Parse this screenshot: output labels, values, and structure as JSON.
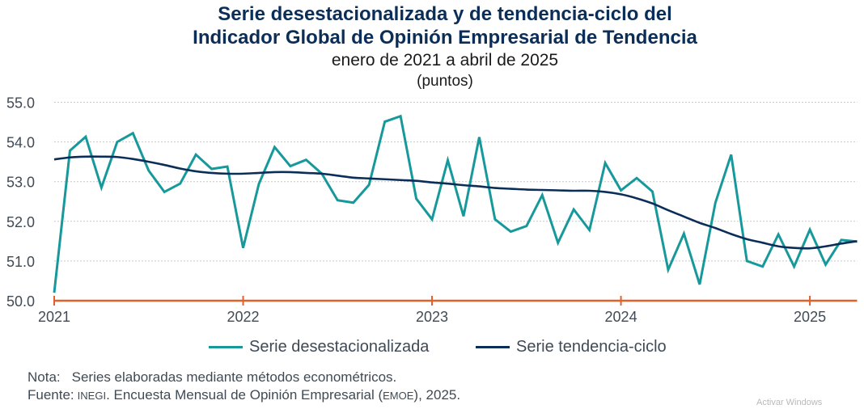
{
  "chart_data": {
    "type": "line",
    "title": "Serie desestacionalizada y de tendencia-ciclo del Indicador Global de Opinión Empresarial de Tendencia",
    "title_lines": [
      "Serie desestacionalizada y de tendencia-ciclo del",
      "Indicador Global de Opinión Empresarial de Tendencia"
    ],
    "subtitle": "enero de 2021 a abril de 2025",
    "units": "(puntos)",
    "xlabel": "",
    "ylabel": "",
    "ylim": [
      50.0,
      55.0
    ],
    "yticks": [
      "55.0",
      "54.0",
      "53.0",
      "52.0",
      "51.0",
      "50.0"
    ],
    "ytick_values": [
      55,
      54,
      53,
      52,
      51,
      50
    ],
    "xticks": [
      "2021",
      "2022",
      "2023",
      "2024",
      "2025"
    ],
    "xtick_month_index": [
      0,
      12,
      24,
      36,
      48
    ],
    "grid": true,
    "legend_position": "bottom",
    "x": [
      "2021-01",
      "2021-02",
      "2021-03",
      "2021-04",
      "2021-05",
      "2021-06",
      "2021-07",
      "2021-08",
      "2021-09",
      "2021-10",
      "2021-11",
      "2021-12",
      "2022-01",
      "2022-02",
      "2022-03",
      "2022-04",
      "2022-05",
      "2022-06",
      "2022-07",
      "2022-08",
      "2022-09",
      "2022-10",
      "2022-11",
      "2022-12",
      "2023-01",
      "2023-02",
      "2023-03",
      "2023-04",
      "2023-05",
      "2023-06",
      "2023-07",
      "2023-08",
      "2023-09",
      "2023-10",
      "2023-11",
      "2023-12",
      "2024-01",
      "2024-02",
      "2024-03",
      "2024-04",
      "2024-05",
      "2024-06",
      "2024-07",
      "2024-08",
      "2024-09",
      "2024-10",
      "2024-11",
      "2024-12",
      "2025-01",
      "2025-02",
      "2025-03",
      "2025-04"
    ],
    "series": [
      {
        "name": "Serie desestacionalizada",
        "color": "#17999b",
        "values": [
          50.2,
          53.78,
          54.13,
          52.85,
          54.0,
          54.22,
          53.28,
          52.74,
          52.95,
          53.68,
          53.32,
          53.38,
          51.33,
          52.94,
          53.87,
          53.39,
          53.55,
          53.2,
          52.53,
          52.47,
          52.92,
          54.51,
          54.65,
          52.57,
          52.05,
          53.54,
          52.13,
          54.12,
          52.05,
          51.74,
          51.88,
          52.66,
          51.46,
          52.3,
          51.78,
          53.47,
          52.78,
          53.09,
          52.75,
          50.78,
          51.69,
          50.41,
          52.47,
          53.68,
          51.0,
          50.86,
          51.67,
          50.86,
          51.79,
          50.91,
          51.53,
          51.49
        ]
      },
      {
        "name": "Serie tendencia-ciclo",
        "color": "#0b2e59",
        "values": [
          53.56,
          53.61,
          53.63,
          53.63,
          53.62,
          53.57,
          53.5,
          53.42,
          53.33,
          53.26,
          53.22,
          53.2,
          53.2,
          53.22,
          53.24,
          53.24,
          53.22,
          53.2,
          53.15,
          53.1,
          53.08,
          53.06,
          53.04,
          53.02,
          52.98,
          52.95,
          52.91,
          52.88,
          52.84,
          52.82,
          52.8,
          52.79,
          52.78,
          52.77,
          52.77,
          52.74,
          52.68,
          52.58,
          52.45,
          52.28,
          52.12,
          51.96,
          51.83,
          51.68,
          51.55,
          51.46,
          51.37,
          51.33,
          51.32,
          51.37,
          51.44,
          51.5
        ]
      }
    ],
    "axis_color": "#e0622a",
    "grid_color": "#c8c8c8",
    "tick_label_color": "#404b56"
  },
  "legend": {
    "items": [
      {
        "label": "Serie desestacionalizada",
        "color": "#17999b"
      },
      {
        "label": "Serie tendencia-ciclo",
        "color": "#0b2e59"
      }
    ]
  },
  "notes": {
    "nota_label": "Nota:",
    "nota_text": "Series elaboradas mediante métodos econométricos.",
    "fuente_label": "Fuente:",
    "fuente_org": "INEGI",
    "fuente_text_1": ". Encuesta Mensual de Opinión Empresarial (",
    "fuente_abbr": "EMOE",
    "fuente_text_2": "), 2025."
  },
  "watermark": "Activar Windows"
}
